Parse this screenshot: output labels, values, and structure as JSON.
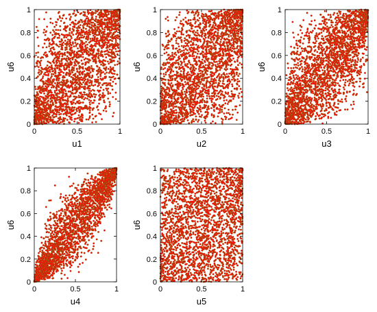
{
  "chart_data": [
    {
      "type": "scatter",
      "xlabel": "u1",
      "ylabel": "u6",
      "xlim": [
        0,
        1
      ],
      "ylim": [
        0,
        1
      ],
      "xticks": [
        "0",
        "0.5",
        "1"
      ],
      "yticks": [
        "0",
        "0.2",
        "0.4",
        "0.6",
        "0.8",
        "1"
      ],
      "point_count": 2500,
      "dependence": "moderate positive",
      "marker_color": "#ff0000",
      "marker_edge_color": "#6b8e23",
      "grid": false
    },
    {
      "type": "scatter",
      "xlabel": "u2",
      "ylabel": "u6",
      "xlim": [
        0,
        1
      ],
      "ylim": [
        0,
        1
      ],
      "xticks": [
        "0",
        "0.5",
        "1"
      ],
      "yticks": [
        "0",
        "0.2",
        "0.4",
        "0.6",
        "0.8",
        "1"
      ],
      "point_count": 2500,
      "dependence": "moderate positive",
      "marker_color": "#ff0000",
      "marker_edge_color": "#6b8e23",
      "grid": false
    },
    {
      "type": "scatter",
      "xlabel": "u3",
      "ylabel": "u6",
      "xlim": [
        0,
        1
      ],
      "ylim": [
        0,
        1
      ],
      "xticks": [
        "0",
        "0.5",
        "1"
      ],
      "yticks": [
        "0",
        "0.2",
        "0.4",
        "0.6",
        "0.8",
        "1"
      ],
      "point_count": 2500,
      "dependence": "moderate-strong positive",
      "marker_color": "#ff0000",
      "marker_edge_color": "#6b8e23",
      "grid": false
    },
    {
      "type": "scatter",
      "xlabel": "u4",
      "ylabel": "u6",
      "xlim": [
        0,
        1
      ],
      "ylim": [
        0,
        1
      ],
      "xticks": [
        "0",
        "0.5",
        "1"
      ],
      "yticks": [
        "0",
        "0.2",
        "0.4",
        "0.6",
        "0.8",
        "1"
      ],
      "point_count": 2500,
      "dependence": "strong positive",
      "marker_color": "#ff0000",
      "marker_edge_color": "#6b8e23",
      "grid": false
    },
    {
      "type": "scatter",
      "xlabel": "u5",
      "ylabel": "u6",
      "xlim": [
        0,
        1
      ],
      "ylim": [
        0,
        1
      ],
      "xticks": [
        "0",
        "0.5",
        "1"
      ],
      "yticks": [
        "0",
        "0.2",
        "0.4",
        "0.6",
        "0.8",
        "1"
      ],
      "point_count": 2500,
      "dependence": "weak positive",
      "marker_color": "#ff0000",
      "marker_edge_color": "#6b8e23",
      "grid": false
    }
  ]
}
